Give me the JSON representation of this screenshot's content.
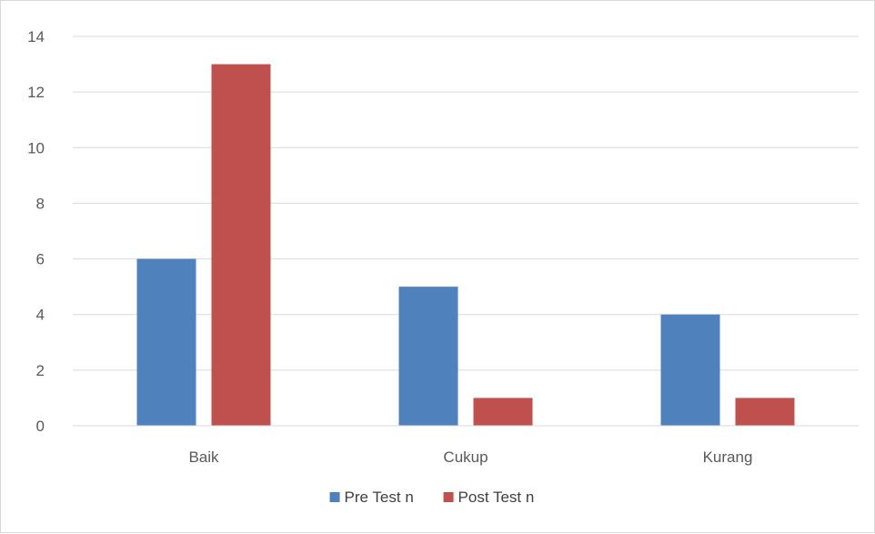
{
  "chart_data": {
    "type": "bar",
    "title": "",
    "xlabel": "",
    "ylabel": "",
    "categories": [
      "Baik",
      "Cukup",
      "Kurang"
    ],
    "series": [
      {
        "name": "Pre Test n",
        "values": [
          6,
          5,
          4
        ],
        "color": "#4f81bd"
      },
      {
        "name": "Post Test n",
        "values": [
          13,
          1,
          1
        ],
        "color": "#c0504d"
      }
    ],
    "ylim": [
      0,
      14
    ],
    "yticks": [
      0,
      2,
      4,
      6,
      8,
      10,
      12,
      14
    ],
    "grid": true,
    "legend_position": "bottom"
  }
}
